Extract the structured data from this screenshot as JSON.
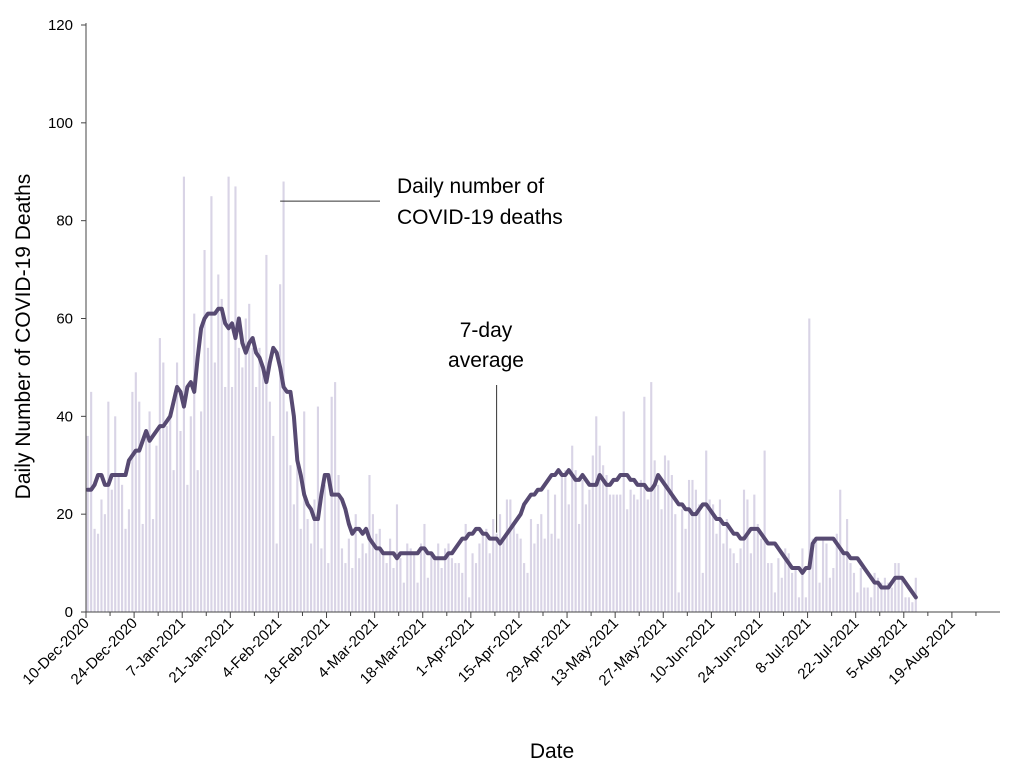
{
  "chart_data": {
    "type": "bar",
    "xlabel": "Date",
    "ylabel": "Daily Number of COVID-19 Deaths",
    "ylim": [
      0,
      120
    ],
    "yticks": [
      0,
      20,
      40,
      60,
      80,
      100,
      120
    ],
    "x_start_date": "10-Dec-2020",
    "x_tick_labels": [
      "10-Dec-2020",
      "24-Dec-2020",
      "7-Jan-2021",
      "21-Jan-2021",
      "4-Feb-2021",
      "18-Feb-2021",
      "4-Mar-2021",
      "18-Mar-2021",
      "1-Apr-2021",
      "15-Apr-2021",
      "29-Apr-2021",
      "13-May-2021",
      "27-May-2021",
      "10-Jun-2021",
      "24-Jun-2021",
      "8-Jul-2021",
      "22-Jul-2021",
      "5-Aug-2021",
      "19-Aug-2021"
    ],
    "x_end_date": "2-Sep-2021",
    "grid": false,
    "bar_color": "#d9d4e6",
    "line_color": "#574a72",
    "annotations": [
      {
        "text_lines": [
          "Daily number of",
          "COVID-19 deaths"
        ],
        "points_to": {
          "date": "4-Feb-2021",
          "value": 84
        }
      },
      {
        "text_lines": [
          "7-day",
          "average"
        ],
        "points_to": {
          "date": "8-Apr-2021",
          "value": 15
        }
      }
    ],
    "series": [
      {
        "type": "bar",
        "values": [
          36,
          45,
          17,
          16,
          23,
          20,
          43,
          25,
          40,
          28,
          26,
          17,
          21,
          45,
          49,
          43,
          18,
          37,
          41,
          19,
          34,
          56,
          51,
          38,
          40,
          29,
          51,
          37,
          89,
          26,
          40,
          61,
          29,
          41,
          74,
          54,
          85,
          51,
          69,
          64,
          46,
          89,
          46,
          87,
          54,
          50,
          60,
          63,
          54,
          46,
          54,
          50,
          73,
          43,
          36,
          14,
          67,
          88,
          41,
          30,
          22,
          33,
          17,
          41,
          19,
          14,
          23,
          42,
          13,
          26,
          10,
          44,
          47,
          28,
          13,
          10,
          15,
          9,
          20,
          11,
          14,
          12,
          28,
          20,
          16,
          17,
          12,
          10,
          15,
          9,
          22,
          11,
          6,
          14,
          13,
          12,
          6,
          14,
          18,
          7,
          12,
          11,
          14,
          9,
          13,
          14,
          11,
          10,
          10,
          8,
          18,
          3,
          12,
          10,
          14,
          16,
          17,
          12,
          19,
          16,
          20,
          15,
          23,
          23,
          18,
          16,
          15,
          10,
          8,
          19,
          14,
          18,
          20,
          15,
          25,
          16,
          24,
          15,
          28,
          29,
          22,
          34,
          29,
          18,
          27,
          22,
          25,
          32,
          40,
          34,
          30,
          28,
          24,
          24,
          24,
          24,
          41,
          21,
          25,
          24,
          23,
          27,
          44,
          23,
          47,
          31,
          26,
          21,
          32,
          31,
          28,
          20,
          4,
          21,
          17,
          27,
          27,
          25,
          22,
          8,
          33,
          23,
          22,
          16,
          23,
          14,
          19,
          13,
          12,
          10,
          13,
          25,
          23,
          12,
          24,
          18,
          15,
          33,
          10,
          10,
          4,
          11,
          7,
          13,
          12,
          8,
          9,
          3,
          13,
          3,
          60,
          15,
          15,
          6,
          15,
          14,
          7,
          9,
          16,
          25,
          12,
          19,
          10,
          8,
          4,
          9,
          5,
          5,
          3,
          8,
          7,
          6,
          7,
          6,
          5,
          10,
          10,
          7,
          3,
          3,
          2,
          7
        ]
      },
      {
        "type": "line",
        "name": "7-day average",
        "values": [
          25,
          25,
          26,
          28,
          28,
          26,
          26,
          28,
          28,
          28,
          28,
          28,
          31,
          32,
          33,
          33,
          35,
          37,
          35,
          36,
          37,
          38,
          38,
          39,
          40,
          43,
          46,
          45,
          42,
          46,
          47,
          45,
          52,
          58,
          60,
          61,
          61,
          61,
          62,
          62,
          59,
          58,
          59,
          56,
          60,
          55,
          53,
          55,
          56,
          53,
          52,
          50,
          47,
          51,
          54,
          53,
          50,
          46,
          45,
          45,
          40,
          31,
          28,
          24,
          22,
          21,
          19,
          19,
          24,
          28,
          28,
          24,
          24,
          24,
          23,
          21,
          18,
          16,
          17,
          17,
          16,
          17,
          15,
          14,
          13,
          13,
          12,
          12,
          12,
          12,
          11,
          12,
          12,
          12,
          12,
          12,
          12,
          13,
          13,
          12,
          12,
          11,
          11,
          11,
          11,
          12,
          12,
          13,
          14,
          15,
          15,
          16,
          16,
          17,
          17,
          16,
          16,
          15,
          15,
          15,
          14,
          15,
          16,
          17,
          18,
          19,
          20,
          22,
          23,
          24,
          24,
          25,
          25,
          26,
          27,
          28,
          28,
          29,
          28,
          28,
          29,
          28,
          27,
          27,
          28,
          27,
          26,
          26,
          26,
          28,
          27,
          26,
          26,
          27,
          27,
          28,
          28,
          28,
          27,
          27,
          26,
          26,
          26,
          25,
          25,
          26,
          28,
          27,
          26,
          25,
          24,
          23,
          22,
          22,
          21,
          21,
          20,
          20,
          21,
          22,
          22,
          21,
          20,
          19,
          19,
          18,
          18,
          17,
          16,
          16,
          15,
          15,
          16,
          17,
          17,
          17,
          16,
          15,
          14,
          14,
          14,
          13,
          12,
          11,
          10,
          9,
          9,
          9,
          8,
          9,
          9,
          14,
          15,
          15,
          15,
          15,
          15,
          15,
          14,
          13,
          12,
          12,
          11,
          11,
          11,
          10,
          9,
          8,
          7,
          6,
          6,
          5,
          5,
          5,
          6,
          7,
          7,
          7,
          6,
          5,
          4,
          3
        ]
      }
    ]
  }
}
